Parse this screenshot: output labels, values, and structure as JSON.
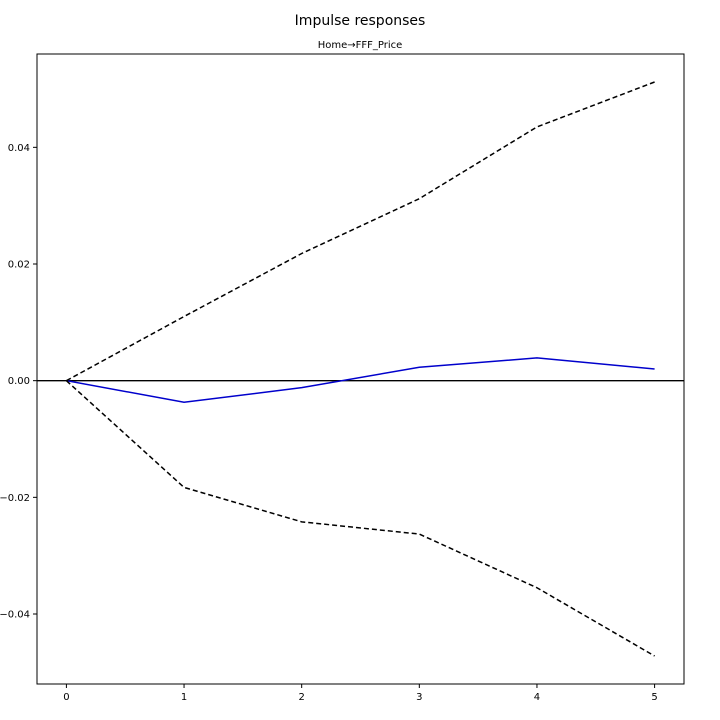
{
  "chart_data": {
    "type": "line",
    "title": "Impulse responses",
    "subtitle": "Home→FFF_Price",
    "x": [
      0,
      1,
      2,
      3,
      4,
      5
    ],
    "xlim": [
      -0.25,
      5.25
    ],
    "ylim": [
      -0.052,
      0.056
    ],
    "xticks": [
      0,
      1,
      2,
      3,
      4,
      5
    ],
    "yticks": [
      -0.04,
      -0.02,
      0.0,
      0.02,
      0.04
    ],
    "ytick_labels": [
      "−0.04",
      "−0.02",
      "0.00",
      "0.02",
      "0.04"
    ],
    "grid": false,
    "series": [
      {
        "role": "response",
        "style": "solid",
        "color": "#0000cc",
        "values": [
          0.0,
          -0.0037,
          -0.0012,
          0.0023,
          0.0039,
          0.002
        ]
      },
      {
        "role": "upper-bound",
        "style": "dashed",
        "color": "#000000",
        "values": [
          0.0,
          0.011,
          0.0218,
          0.0312,
          0.0435,
          0.0512
        ]
      },
      {
        "role": "lower-bound",
        "style": "dashed",
        "color": "#000000",
        "values": [
          0.0,
          -0.0183,
          -0.0242,
          -0.0263,
          -0.0355,
          -0.0472
        ]
      }
    ],
    "zero_line": {
      "y": 0.0,
      "color": "#000000"
    }
  }
}
